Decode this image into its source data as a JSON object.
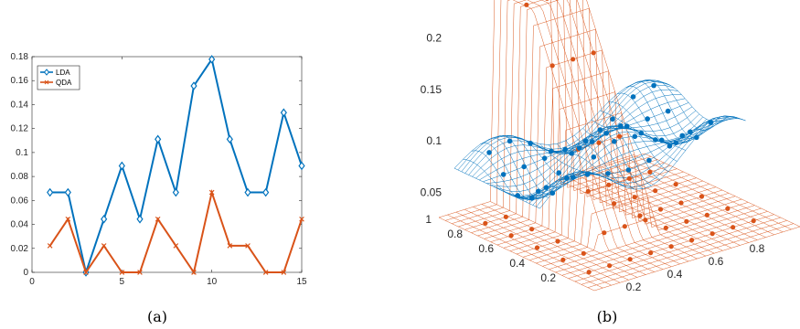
{
  "colors": {
    "lda": "#0072BD",
    "qda": "#D95319",
    "axis": "#262626"
  },
  "chart_data": [
    {
      "type": "line",
      "caption": "(a)",
      "x": [
        1,
        2,
        3,
        4,
        5,
        6,
        7,
        8,
        9,
        10,
        11,
        12,
        13,
        14,
        15
      ],
      "xticks": [
        "0",
        "5",
        "10",
        "15"
      ],
      "yticks": [
        "0",
        "0.02",
        "0.04",
        "0.06",
        "0.08",
        "0.1",
        "0.12",
        "0.14",
        "0.16",
        "0.18"
      ],
      "xlim": [
        0,
        15
      ],
      "ylim": [
        0,
        0.18
      ],
      "legend_position": "top-left",
      "series": [
        {
          "name": "LDA",
          "marker": "diamond",
          "values": [
            0.0667,
            0.0667,
            0.0,
            0.0444,
            0.0889,
            0.0444,
            0.1111,
            0.0667,
            0.1556,
            0.1778,
            0.1111,
            0.0667,
            0.0667,
            0.1333,
            0.0889
          ]
        },
        {
          "name": "QDA",
          "marker": "x",
          "values": [
            0.0222,
            0.0444,
            0.0,
            0.0222,
            0.0,
            0.0,
            0.0444,
            0.0222,
            0.0,
            0.0667,
            0.0222,
            0.0222,
            0.0,
            0.0,
            0.0444
          ]
        }
      ]
    },
    {
      "type": "surface",
      "caption": "(b)",
      "zticks": [
        "0.05",
        "0.1",
        "0.15",
        "0.2"
      ],
      "x_ticks": [
        "0.2",
        "0.4",
        "0.6",
        "0.8"
      ],
      "y_ticks": [
        "0.2",
        "0.4",
        "0.6",
        "0.8",
        "1"
      ],
      "zlim": [
        0.05,
        0.2
      ],
      "series": [
        {
          "kind": "surface",
          "color": "qda",
          "description": "ridge along a band of x, high ~0.22 on the ridge, low ~0.02 elsewhere"
        },
        {
          "kind": "surface",
          "color": "lda",
          "description": "near-flat sheet around 0.07–0.1"
        }
      ]
    }
  ]
}
